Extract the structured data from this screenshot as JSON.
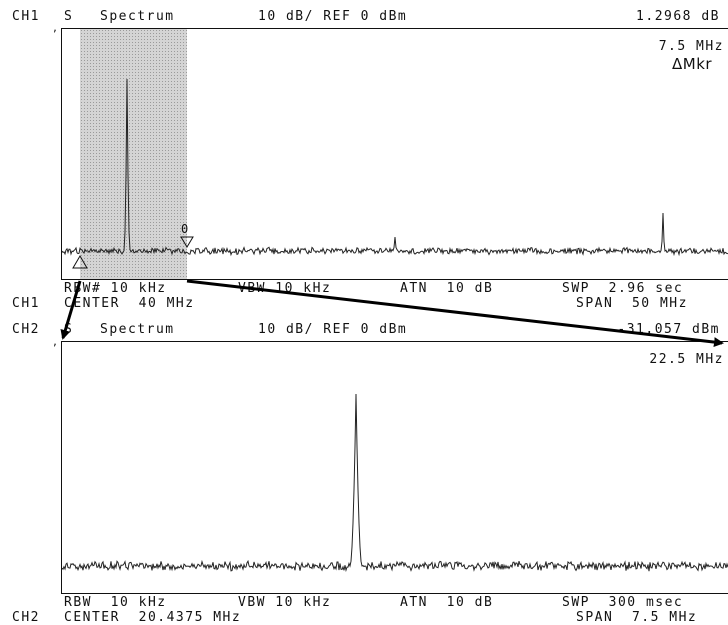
{
  "ch1": {
    "header": {
      "channel": "CH1",
      "mode": "S",
      "title": "Spectrum",
      "scale": "10 dB/ REF 0 dBm",
      "readout": "1.2968 dB"
    },
    "marker_freq": "7.5 MHz",
    "delta_marker_label": "ΔMkr",
    "footer": {
      "rbw": "RBW# 10 kHz",
      "vbw": "VBW 10 kHz",
      "atn": "ATN  10 dB",
      "swp": "SWP  2.96 sec"
    },
    "status": {
      "channel": "CH1",
      "center": "CENTER  40 MHz",
      "span": "SPAN  50 MHz"
    },
    "marker_glyph": "0"
  },
  "ch2": {
    "header": {
      "channel": "CH2",
      "mode": "S",
      "title": "Spectrum",
      "scale": "10 dB/ REF 0 dBm",
      "readout": "-31.057 dBm"
    },
    "marker_freq": "22.5 MHz",
    "footer": {
      "rbw": "RBW  10 kHz",
      "vbw": "VBW 10 kHz",
      "atn": "ATN  10 dB",
      "swp": "SWP  300 msec"
    },
    "status": {
      "channel": "CH2",
      "center": "CENTER  20.4375 MHz",
      "span": "SPAN  7.5 MHz"
    }
  },
  "colors": {
    "trace": "#222222",
    "zoom_band": "#cccccc",
    "arrow": "#000000"
  }
}
